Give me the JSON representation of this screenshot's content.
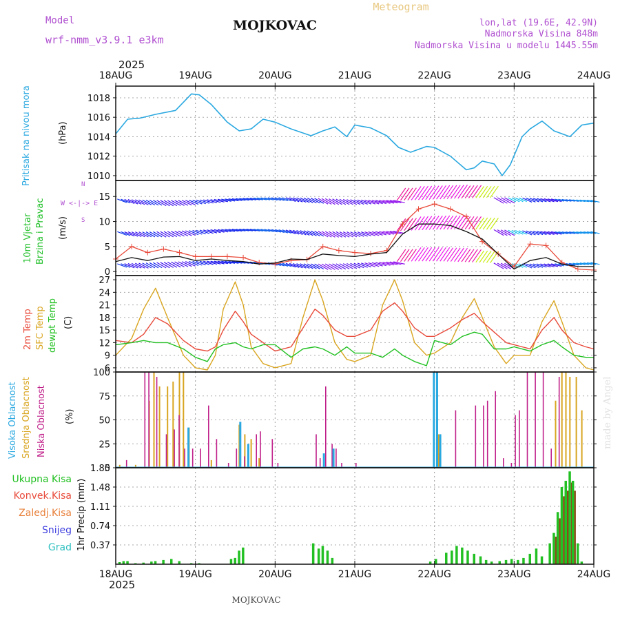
{
  "header": {
    "model_label": "Model",
    "model_name": "wrf-nmm_v3.9.1  e3km",
    "station": "MOJKOVAC",
    "meteogram": "Meteogram",
    "lonlat": "lon,lat (19.6E, 42.9N)",
    "elevation": "Nadmorska Visina 848m",
    "model_elevation": "Nadmorska Visina u modelu 1445.55m",
    "year_top": "2025",
    "year_bottom": "2025",
    "footer_station": "MOJKOVAC",
    "watermark": "made by Angel"
  },
  "colors": {
    "pressure": "#2aa8e0",
    "wind_label": "#22c02a",
    "wind_speed": "#111111",
    "gust": "#e84a3a",
    "temp2m": "#e84a3a",
    "tsfc": "#d9a520",
    "dewpt": "#22c022",
    "cloud_high": "#2aa8e0",
    "cloud_mid": "#d9a520",
    "cloud_low": "#c0208a",
    "precip_total": "#22c022",
    "precip_conv": "#e84a3a",
    "precip_ice": "#e8803a",
    "snow": "#4040e0",
    "hail": "#30c0c0",
    "purple": "#b050d0",
    "orange_title": "#e8c880"
  },
  "chart_data": [
    {
      "type": "line",
      "name": "pressure",
      "title": "Pritisak na nivou mora",
      "ylabel": "(hPa)",
      "ylim": [
        1009.5,
        1019.2
      ],
      "yticks": [
        1010,
        1012,
        1014,
        1016,
        1018
      ],
      "xlabels": [
        "18AUG",
        "19AUG",
        "20AUG",
        "21AUG",
        "22AUG",
        "23AUG",
        "24AUG"
      ],
      "x_days": [
        0,
        0.15,
        0.3,
        0.5,
        0.75,
        0.95,
        1.05,
        1.2,
        1.4,
        1.55,
        1.7,
        1.85,
        2.0,
        2.2,
        2.45,
        2.6,
        2.75,
        2.9,
        3.0,
        3.2,
        3.4,
        3.55,
        3.7,
        3.9,
        4.0,
        4.2,
        4.4,
        4.5,
        4.6,
        4.75,
        4.85,
        4.95,
        5.1,
        5.2,
        5.35,
        5.5,
        5.7,
        5.85,
        6.0
      ],
      "values": [
        1014.3,
        1015.8,
        1015.9,
        1016.3,
        1016.7,
        1018.4,
        1018.3,
        1017.3,
        1015.5,
        1014.6,
        1014.8,
        1015.8,
        1015.5,
        1014.8,
        1014.1,
        1014.6,
        1015.0,
        1014.0,
        1015.2,
        1014.9,
        1014.1,
        1012.9,
        1012.4,
        1013.0,
        1012.9,
        1012.0,
        1010.6,
        1010.8,
        1011.5,
        1011.2,
        1010.0,
        1011.1,
        1014.0,
        1014.8,
        1015.6,
        1014.6,
        1014.0,
        1015.2,
        1015.4
      ]
    },
    {
      "type": "line",
      "name": "wind",
      "title": "10m Vjetar Brzina i Pravac",
      "ylabel": "(m/s)",
      "compass": "W <-|-> E",
      "ylim": [
        -0.8,
        18.2
      ],
      "yticks": [
        0,
        5,
        10,
        15
      ],
      "x_days": [
        0,
        0.2,
        0.4,
        0.6,
        0.8,
        1.0,
        1.2,
        1.4,
        1.6,
        1.8,
        2.0,
        2.2,
        2.4,
        2.6,
        2.8,
        3.0,
        3.2,
        3.4,
        3.6,
        3.8,
        4.0,
        4.2,
        4.4,
        4.6,
        4.8,
        5.0,
        5.2,
        5.4,
        5.6,
        5.8,
        6.0
      ],
      "speed": [
        2.0,
        2.8,
        2.2,
        2.9,
        3.0,
        2.2,
        2.5,
        2.2,
        2.0,
        1.5,
        1.7,
        2.5,
        2.4,
        3.5,
        3.2,
        3.0,
        3.5,
        3.8,
        7.5,
        9.5,
        9.5,
        9.2,
        8.0,
        6.5,
        3.5,
        0.5,
        2.2,
        2.8,
        1.5,
        1.0,
        1.0
      ],
      "gust": [
        2.5,
        5.0,
        3.8,
        4.5,
        3.8,
        3.0,
        3.0,
        3.0,
        2.8,
        1.8,
        1.5,
        2.2,
        2.4,
        5.0,
        4.2,
        3.8,
        3.6,
        4.2,
        9.5,
        12.5,
        13.5,
        12.5,
        11.0,
        6.0,
        3.5,
        1.0,
        5.5,
        5.2,
        1.8,
        0.5,
        0.3
      ]
    },
    {
      "type": "line",
      "name": "temperature",
      "title_2m": "2m Temp",
      "title_sfc": "SFC Temp",
      "title_dew": "dewpt Temp",
      "ylabel": "(C)",
      "ylim": [
        5.0,
        28.0
      ],
      "yticks": [
        6,
        9,
        12,
        15,
        18,
        21,
        24,
        27
      ],
      "x_days": [
        0,
        0.2,
        0.35,
        0.5,
        0.65,
        0.85,
        1.0,
        1.15,
        1.25,
        1.35,
        1.5,
        1.6,
        1.7,
        1.85,
        2.0,
        2.2,
        2.35,
        2.5,
        2.6,
        2.75,
        2.9,
        3.0,
        3.2,
        3.35,
        3.5,
        3.6,
        3.75,
        3.9,
        4.0,
        4.2,
        4.35,
        4.5,
        4.6,
        4.75,
        4.9,
        5.0,
        5.2,
        5.35,
        5.5,
        5.6,
        5.75,
        5.9,
        6.0
      ],
      "t2m": [
        12.5,
        12.0,
        14.0,
        18.0,
        16.5,
        12.5,
        10.5,
        10.0,
        11.0,
        15.0,
        19.5,
        17.0,
        14.0,
        12.0,
        10.0,
        11.0,
        15.5,
        20.0,
        18.5,
        15.0,
        13.5,
        13.5,
        15.0,
        19.5,
        21.5,
        19.5,
        15.5,
        13.5,
        13.5,
        15.5,
        17.5,
        19.0,
        17.0,
        14.5,
        12.0,
        11.5,
        10.5,
        15.0,
        18.0,
        15.0,
        12.0,
        11.0,
        10.5
      ],
      "tsfc": [
        9.0,
        13.0,
        20.0,
        25.0,
        18.0,
        9.0,
        6.0,
        5.5,
        9.0,
        20.0,
        26.5,
        21.0,
        11.0,
        7.0,
        6.0,
        7.0,
        18.0,
        27.0,
        22.0,
        12.0,
        8.0,
        7.5,
        9.0,
        21.0,
        27.0,
        22.0,
        12.0,
        9.0,
        9.5,
        12.0,
        18.0,
        22.5,
        18.0,
        11.0,
        7.0,
        9.0,
        9.0,
        17.0,
        22.0,
        17.0,
        9.0,
        6.0,
        5.5
      ],
      "dew": [
        11.5,
        12.0,
        12.5,
        12.0,
        12.0,
        10.5,
        8.5,
        7.5,
        10.5,
        11.5,
        12.0,
        11.0,
        10.5,
        11.5,
        11.5,
        8.5,
        10.5,
        11.0,
        10.5,
        9.0,
        11.0,
        9.5,
        9.5,
        8.5,
        10.5,
        9.0,
        7.5,
        6.5,
        12.5,
        11.5,
        13.5,
        14.5,
        14.0,
        10.5,
        10.5,
        11.0,
        10.0,
        11.5,
        12.5,
        11.0,
        9.0,
        8.5,
        8.5
      ]
    },
    {
      "type": "bar",
      "name": "cloud",
      "title_high": "Visoka Oblacnost",
      "title_mid": "Srednja Oblacnost",
      "title_low": "Niska Oblacnost",
      "ylabel": "(%)",
      "ylim": [
        0,
        100
      ],
      "yticks": [
        0,
        25,
        50,
        75,
        100
      ],
      "low": [
        [
          0.12,
          8
        ],
        [
          0.35,
          100
        ],
        [
          0.4,
          100
        ],
        [
          0.5,
          95
        ],
        [
          0.62,
          35
        ],
        [
          0.72,
          40
        ],
        [
          0.78,
          55
        ],
        [
          0.85,
          20
        ],
        [
          0.9,
          35
        ],
        [
          0.95,
          20
        ],
        [
          1.05,
          20
        ],
        [
          1.15,
          65
        ],
        [
          1.25,
          30
        ],
        [
          1.4,
          5
        ],
        [
          1.5,
          20
        ],
        [
          1.6,
          12
        ],
        [
          1.65,
          12
        ],
        [
          1.75,
          35
        ],
        [
          1.8,
          38
        ],
        [
          1.95,
          30
        ],
        [
          2.02,
          5
        ],
        [
          2.5,
          35
        ],
        [
          2.55,
          10
        ],
        [
          2.62,
          85
        ],
        [
          2.7,
          25
        ],
        [
          2.75,
          20
        ],
        [
          2.82,
          5
        ],
        [
          3.0,
          5
        ],
        [
          4.05,
          15
        ],
        [
          4.25,
          60
        ],
        [
          4.5,
          65
        ],
        [
          4.6,
          65
        ],
        [
          4.65,
          70
        ],
        [
          4.75,
          80
        ],
        [
          4.85,
          10
        ],
        [
          4.95,
          5
        ],
        [
          5.0,
          55
        ],
        [
          5.05,
          60
        ],
        [
          5.15,
          100
        ],
        [
          5.25,
          100
        ],
        [
          5.35,
          100
        ],
        [
          5.45,
          20
        ],
        [
          5.55,
          95
        ]
      ],
      "mid": [
        [
          0.05,
          3
        ],
        [
          0.25,
          3
        ],
        [
          0.42,
          70
        ],
        [
          0.48,
          100
        ],
        [
          0.55,
          85
        ],
        [
          0.65,
          85
        ],
        [
          0.72,
          90
        ],
        [
          0.8,
          100
        ],
        [
          0.85,
          100
        ],
        [
          0.92,
          42
        ],
        [
          1.2,
          8
        ],
        [
          1.55,
          45
        ],
        [
          1.62,
          35
        ],
        [
          1.7,
          30
        ],
        [
          1.8,
          10
        ],
        [
          4.05,
          35
        ],
        [
          5.52,
          70
        ],
        [
          5.6,
          100
        ],
        [
          5.65,
          100
        ],
        [
          5.7,
          95
        ],
        [
          5.78,
          95
        ],
        [
          5.85,
          60
        ]
      ],
      "high": [
        [
          0.9,
          42
        ],
        [
          1.55,
          48
        ],
        [
          1.65,
          25
        ],
        [
          2.6,
          15
        ],
        [
          2.72,
          20
        ],
        [
          3.98,
          100
        ],
        [
          4.02,
          100
        ],
        [
          4.06,
          35
        ]
      ]
    },
    {
      "type": "bar",
      "name": "precip",
      "ylabel": "1hr Precip (mm)",
      "legend": [
        "Ukupna  Kisa",
        "Konvek.Kisa",
        "Zaledj.Kisa",
        "Snijeg",
        "Grad"
      ],
      "ylim": [
        0,
        1.85
      ],
      "yticks": [
        0.37,
        0.74,
        1.11,
        1.48,
        1.85
      ],
      "total": [
        [
          0.05,
          0.04
        ],
        [
          0.1,
          0.06
        ],
        [
          0.15,
          0.06
        ],
        [
          0.25,
          0.02
        ],
        [
          0.35,
          0.03
        ],
        [
          0.45,
          0.05
        ],
        [
          0.5,
          0.06
        ],
        [
          0.6,
          0.08
        ],
        [
          0.7,
          0.1
        ],
        [
          0.8,
          0.06
        ],
        [
          0.95,
          0.02
        ],
        [
          1.05,
          0.02
        ],
        [
          1.45,
          0.1
        ],
        [
          1.5,
          0.12
        ],
        [
          1.55,
          0.26
        ],
        [
          1.6,
          0.32
        ],
        [
          2.48,
          0.4
        ],
        [
          2.55,
          0.3
        ],
        [
          2.6,
          0.35
        ],
        [
          2.66,
          0.26
        ],
        [
          2.72,
          0.12
        ],
        [
          3.95,
          0.05
        ],
        [
          4.02,
          0.1
        ],
        [
          4.15,
          0.22
        ],
        [
          4.22,
          0.26
        ],
        [
          4.28,
          0.35
        ],
        [
          4.35,
          0.32
        ],
        [
          4.42,
          0.26
        ],
        [
          4.5,
          0.2
        ],
        [
          4.58,
          0.15
        ],
        [
          4.65,
          0.08
        ],
        [
          4.72,
          0.05
        ],
        [
          4.82,
          0.06
        ],
        [
          4.9,
          0.08
        ],
        [
          4.97,
          0.1
        ],
        [
          5.05,
          0.08
        ],
        [
          5.12,
          0.12
        ],
        [
          5.2,
          0.2
        ],
        [
          5.28,
          0.3
        ],
        [
          5.35,
          0.15
        ],
        [
          5.45,
          0.4
        ],
        [
          5.5,
          0.6
        ],
        [
          5.55,
          1.0
        ],
        [
          5.6,
          1.48
        ],
        [
          5.65,
          1.6
        ],
        [
          5.7,
          1.78
        ],
        [
          5.74,
          1.6
        ],
        [
          5.8,
          0.4
        ],
        [
          5.85,
          0.05
        ]
      ]
    }
  ]
}
